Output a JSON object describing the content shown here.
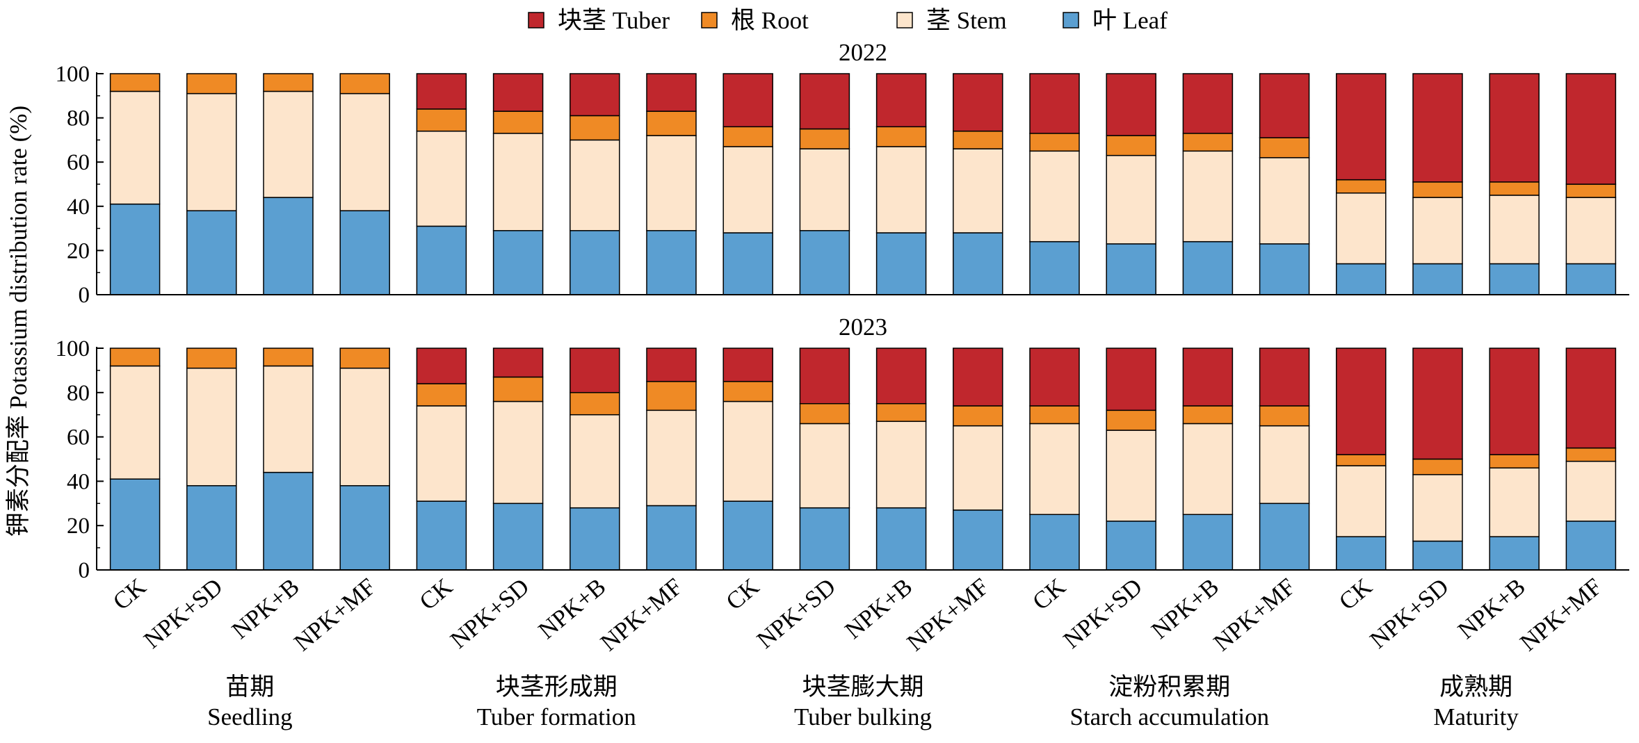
{
  "chart_data": {
    "type": "bar",
    "stacked": true,
    "ylabel": "钾素分配率  Potassium distribution rate (%)",
    "ylim": [
      0,
      100
    ],
    "yticks": [
      0,
      20,
      40,
      60,
      80,
      100
    ],
    "legend": {
      "placement": "top-center",
      "entries": [
        {
          "key": "tuber",
          "label": "块茎 Tuber",
          "color": "#c0272d"
        },
        {
          "key": "root",
          "label": "根 Root",
          "color": "#ef8a25"
        },
        {
          "key": "stem",
          "label": "茎 Stem",
          "color": "#fde5cc"
        },
        {
          "key": "leaf",
          "label": "叶 Leaf",
          "color": "#5b9fd1"
        }
      ]
    },
    "treatments": [
      "CK",
      "NPK+SD",
      "NPK+B",
      "NPK+MF"
    ],
    "stages": [
      {
        "cn": "苗期",
        "en": "Seedling"
      },
      {
        "cn": "块茎形成期",
        "en": "Tuber formation"
      },
      {
        "cn": "块茎膨大期",
        "en": "Tuber bulking"
      },
      {
        "cn": "淀粉积累期",
        "en": "Starch accumulation"
      },
      {
        "cn": "成熟期",
        "en": "Maturity"
      }
    ],
    "panels": [
      {
        "title": "2022",
        "bars": [
          {
            "leaf": 41,
            "stem": 51,
            "root": 8,
            "tuber": 0
          },
          {
            "leaf": 38,
            "stem": 53,
            "root": 9,
            "tuber": 0
          },
          {
            "leaf": 44,
            "stem": 48,
            "root": 8,
            "tuber": 0
          },
          {
            "leaf": 38,
            "stem": 53,
            "root": 9,
            "tuber": 0
          },
          {
            "leaf": 31,
            "stem": 43,
            "root": 10,
            "tuber": 16
          },
          {
            "leaf": 29,
            "stem": 44,
            "root": 10,
            "tuber": 17
          },
          {
            "leaf": 29,
            "stem": 41,
            "root": 11,
            "tuber": 19
          },
          {
            "leaf": 29,
            "stem": 43,
            "root": 11,
            "tuber": 17
          },
          {
            "leaf": 28,
            "stem": 39,
            "root": 9,
            "tuber": 24
          },
          {
            "leaf": 29,
            "stem": 37,
            "root": 9,
            "tuber": 25
          },
          {
            "leaf": 28,
            "stem": 39,
            "root": 9,
            "tuber": 24
          },
          {
            "leaf": 28,
            "stem": 38,
            "root": 8,
            "tuber": 26
          },
          {
            "leaf": 24,
            "stem": 41,
            "root": 8,
            "tuber": 27
          },
          {
            "leaf": 23,
            "stem": 40,
            "root": 9,
            "tuber": 28
          },
          {
            "leaf": 24,
            "stem": 41,
            "root": 8,
            "tuber": 27
          },
          {
            "leaf": 23,
            "stem": 39,
            "root": 9,
            "tuber": 29
          },
          {
            "leaf": 14,
            "stem": 32,
            "root": 6,
            "tuber": 48
          },
          {
            "leaf": 14,
            "stem": 30,
            "root": 7,
            "tuber": 49
          },
          {
            "leaf": 14,
            "stem": 31,
            "root": 6,
            "tuber": 49
          },
          {
            "leaf": 14,
            "stem": 30,
            "root": 6,
            "tuber": 50
          }
        ]
      },
      {
        "title": "2023",
        "bars": [
          {
            "leaf": 41,
            "stem": 51,
            "root": 8,
            "tuber": 0
          },
          {
            "leaf": 38,
            "stem": 53,
            "root": 9,
            "tuber": 0
          },
          {
            "leaf": 44,
            "stem": 48,
            "root": 8,
            "tuber": 0
          },
          {
            "leaf": 38,
            "stem": 53,
            "root": 9,
            "tuber": 0
          },
          {
            "leaf": 31,
            "stem": 43,
            "root": 10,
            "tuber": 16
          },
          {
            "leaf": 30,
            "stem": 46,
            "root": 11,
            "tuber": 13
          },
          {
            "leaf": 28,
            "stem": 42,
            "root": 10,
            "tuber": 20
          },
          {
            "leaf": 29,
            "stem": 43,
            "root": 13,
            "tuber": 15
          },
          {
            "leaf": 31,
            "stem": 45,
            "root": 9,
            "tuber": 15
          },
          {
            "leaf": 28,
            "stem": 38,
            "root": 9,
            "tuber": 25
          },
          {
            "leaf": 28,
            "stem": 39,
            "root": 8,
            "tuber": 25
          },
          {
            "leaf": 27,
            "stem": 38,
            "root": 9,
            "tuber": 26
          },
          {
            "leaf": 25,
            "stem": 41,
            "root": 8,
            "tuber": 26
          },
          {
            "leaf": 22,
            "stem": 41,
            "root": 9,
            "tuber": 28
          },
          {
            "leaf": 25,
            "stem": 41,
            "root": 8,
            "tuber": 26
          },
          {
            "leaf": 30,
            "stem": 35,
            "root": 9,
            "tuber": 26
          },
          {
            "leaf": 15,
            "stem": 32,
            "root": 5,
            "tuber": 48
          },
          {
            "leaf": 13,
            "stem": 30,
            "root": 7,
            "tuber": 50
          },
          {
            "leaf": 15,
            "stem": 31,
            "root": 6,
            "tuber": 48
          },
          {
            "leaf": 22,
            "stem": 27,
            "root": 6,
            "tuber": 45
          }
        ]
      }
    ]
  }
}
